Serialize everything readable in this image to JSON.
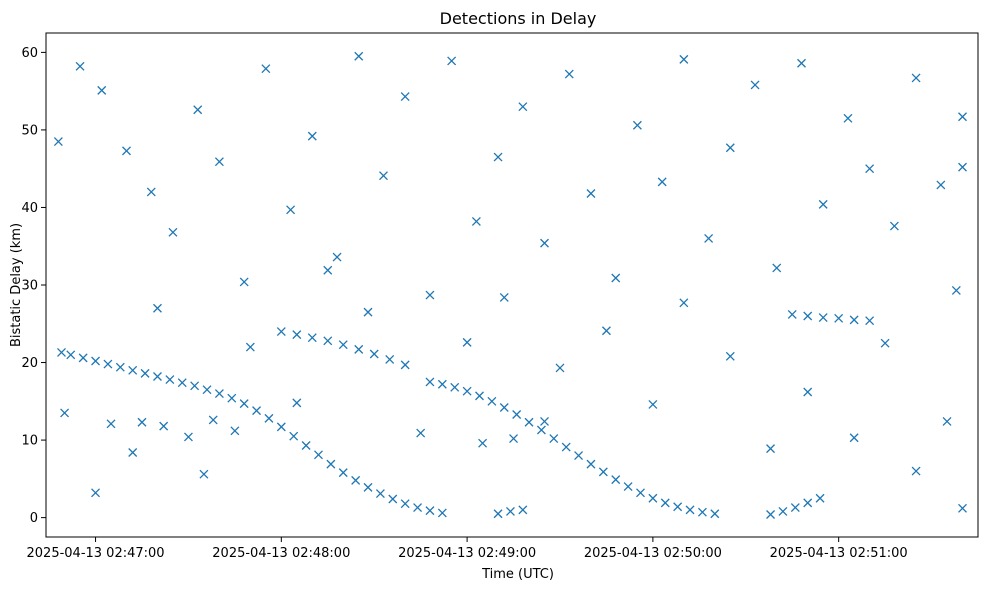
{
  "chart_data": {
    "type": "scatter",
    "title": "Detections in Delay",
    "xlabel": "Time (UTC)",
    "ylabel": "Bistatic Delay (km)",
    "marker": "x",
    "color": "#1f77b4",
    "grid": false,
    "xlim": [
      "2025-04-13 02:46:44",
      "2025-04-13 02:51:45"
    ],
    "ylim": [
      -2.5,
      62.5
    ],
    "x_ticks": [
      "2025-04-13 02:47:00",
      "2025-04-13 02:48:00",
      "2025-04-13 02:49:00",
      "2025-04-13 02:50:00",
      "2025-04-13 02:51:00"
    ],
    "y_ticks": [
      0,
      10,
      20,
      30,
      40,
      50,
      60
    ],
    "series": [
      {
        "points": [
          [
            "2025-04-13 02:46:49",
            21.3
          ],
          [
            "2025-04-13 02:46:52",
            21.0
          ],
          [
            "2025-04-13 02:46:56",
            20.6
          ],
          [
            "2025-04-13 02:47:00",
            20.2
          ],
          [
            "2025-04-13 02:47:04",
            19.8
          ],
          [
            "2025-04-13 02:47:08",
            19.4
          ],
          [
            "2025-04-13 02:47:12",
            19.0
          ],
          [
            "2025-04-13 02:47:16",
            18.6
          ],
          [
            "2025-04-13 02:47:20",
            18.2
          ],
          [
            "2025-04-13 02:47:24",
            17.8
          ],
          [
            "2025-04-13 02:47:28",
            17.4
          ],
          [
            "2025-04-13 02:47:32",
            17.0
          ],
          [
            "2025-04-13 02:47:36",
            16.5
          ],
          [
            "2025-04-13 02:47:40",
            16.0
          ],
          [
            "2025-04-13 02:47:44",
            15.4
          ],
          [
            "2025-04-13 02:47:48",
            14.7
          ],
          [
            "2025-04-13 02:47:52",
            13.8
          ],
          [
            "2025-04-13 02:47:56",
            12.8
          ],
          [
            "2025-04-13 02:48:00",
            11.7
          ],
          [
            "2025-04-13 02:48:04",
            10.5
          ],
          [
            "2025-04-13 02:48:08",
            9.3
          ],
          [
            "2025-04-13 02:48:12",
            8.1
          ],
          [
            "2025-04-13 02:48:16",
            6.9
          ],
          [
            "2025-04-13 02:48:20",
            5.8
          ],
          [
            "2025-04-13 02:48:24",
            4.8
          ],
          [
            "2025-04-13 02:48:28",
            3.9
          ],
          [
            "2025-04-13 02:48:32",
            3.1
          ],
          [
            "2025-04-13 02:48:36",
            2.4
          ],
          [
            "2025-04-13 02:48:40",
            1.8
          ],
          [
            "2025-04-13 02:48:44",
            1.3
          ],
          [
            "2025-04-13 02:48:48",
            0.9
          ],
          [
            "2025-04-13 02:48:52",
            0.6
          ],
          [
            "2025-04-13 02:48:48",
            17.5
          ],
          [
            "2025-04-13 02:48:52",
            17.2
          ],
          [
            "2025-04-13 02:48:56",
            16.8
          ],
          [
            "2025-04-13 02:49:00",
            16.3
          ],
          [
            "2025-04-13 02:49:04",
            15.7
          ],
          [
            "2025-04-13 02:49:08",
            15.0
          ],
          [
            "2025-04-13 02:49:12",
            14.2
          ],
          [
            "2025-04-13 02:49:16",
            13.3
          ],
          [
            "2025-04-13 02:49:20",
            12.3
          ],
          [
            "2025-04-13 02:49:24",
            11.3
          ],
          [
            "2025-04-13 02:49:28",
            10.2
          ],
          [
            "2025-04-13 02:49:32",
            9.1
          ],
          [
            "2025-04-13 02:49:36",
            8.0
          ],
          [
            "2025-04-13 02:49:40",
            6.9
          ],
          [
            "2025-04-13 02:49:44",
            5.9
          ],
          [
            "2025-04-13 02:49:48",
            4.9
          ],
          [
            "2025-04-13 02:49:52",
            4.0
          ],
          [
            "2025-04-13 02:49:56",
            3.2
          ],
          [
            "2025-04-13 02:50:00",
            2.5
          ],
          [
            "2025-04-13 02:50:04",
            1.9
          ],
          [
            "2025-04-13 02:50:08",
            1.4
          ],
          [
            "2025-04-13 02:50:12",
            1.0
          ],
          [
            "2025-04-13 02:50:16",
            0.7
          ],
          [
            "2025-04-13 02:50:20",
            0.5
          ],
          [
            "2025-04-13 02:49:10",
            0.5
          ],
          [
            "2025-04-13 02:49:14",
            0.8
          ],
          [
            "2025-04-13 02:49:18",
            1.0
          ],
          [
            "2025-04-13 02:50:38",
            0.4
          ],
          [
            "2025-04-13 02:50:42",
            0.8
          ],
          [
            "2025-04-13 02:50:46",
            1.3
          ],
          [
            "2025-04-13 02:50:50",
            1.9
          ],
          [
            "2025-04-13 02:50:54",
            2.5
          ],
          [
            "2025-04-13 02:48:00",
            24.0
          ],
          [
            "2025-04-13 02:48:05",
            23.6
          ],
          [
            "2025-04-13 02:48:10",
            23.2
          ],
          [
            "2025-04-13 02:48:15",
            22.8
          ],
          [
            "2025-04-13 02:48:20",
            22.3
          ],
          [
            "2025-04-13 02:48:25",
            21.7
          ],
          [
            "2025-04-13 02:48:30",
            21.1
          ],
          [
            "2025-04-13 02:48:35",
            20.4
          ],
          [
            "2025-04-13 02:48:40",
            19.7
          ],
          [
            "2025-04-13 02:50:45",
            26.2
          ],
          [
            "2025-04-13 02:50:50",
            26.0
          ],
          [
            "2025-04-13 02:50:55",
            25.8
          ],
          [
            "2025-04-13 02:51:00",
            25.7
          ],
          [
            "2025-04-13 02:51:05",
            25.5
          ],
          [
            "2025-04-13 02:51:10",
            25.4
          ],
          [
            "2025-04-13 02:47:05",
            12.1
          ],
          [
            "2025-04-13 02:47:15",
            12.3
          ],
          [
            "2025-04-13 02:47:22",
            11.8
          ],
          [
            "2025-04-13 02:47:30",
            10.4
          ],
          [
            "2025-04-13 02:47:38",
            12.6
          ],
          [
            "2025-04-13 02:47:45",
            11.2
          ],
          [
            "2025-04-13 02:49:05",
            9.6
          ],
          [
            "2025-04-13 02:49:15",
            10.2
          ],
          [
            "2025-04-13 02:49:25",
            12.4
          ],
          [
            "2025-04-13 02:46:48",
            48.5
          ],
          [
            "2025-04-13 02:46:55",
            58.2
          ],
          [
            "2025-04-13 02:47:02",
            55.1
          ],
          [
            "2025-04-13 02:47:10",
            47.3
          ],
          [
            "2025-04-13 02:47:18",
            42.0
          ],
          [
            "2025-04-13 02:47:25",
            36.8
          ],
          [
            "2025-04-13 02:47:33",
            52.6
          ],
          [
            "2025-04-13 02:47:40",
            45.9
          ],
          [
            "2025-04-13 02:47:48",
            30.4
          ],
          [
            "2025-04-13 02:47:55",
            57.9
          ],
          [
            "2025-04-13 02:48:03",
            39.7
          ],
          [
            "2025-04-13 02:48:10",
            49.2
          ],
          [
            "2025-04-13 02:48:18",
            33.6
          ],
          [
            "2025-04-13 02:48:25",
            59.5
          ],
          [
            "2025-04-13 02:48:33",
            44.1
          ],
          [
            "2025-04-13 02:48:40",
            54.3
          ],
          [
            "2025-04-13 02:48:48",
            28.7
          ],
          [
            "2025-04-13 02:48:55",
            58.9
          ],
          [
            "2025-04-13 02:49:03",
            38.2
          ],
          [
            "2025-04-13 02:49:10",
            46.5
          ],
          [
            "2025-04-13 02:49:18",
            53.0
          ],
          [
            "2025-04-13 02:49:25",
            35.4
          ],
          [
            "2025-04-13 02:49:33",
            57.2
          ],
          [
            "2025-04-13 02:49:40",
            41.8
          ],
          [
            "2025-04-13 02:49:48",
            30.9
          ],
          [
            "2025-04-13 02:49:55",
            50.6
          ],
          [
            "2025-04-13 02:50:03",
            43.3
          ],
          [
            "2025-04-13 02:50:10",
            59.1
          ],
          [
            "2025-04-13 02:50:18",
            36.0
          ],
          [
            "2025-04-13 02:50:25",
            47.7
          ],
          [
            "2025-04-13 02:50:33",
            55.8
          ],
          [
            "2025-04-13 02:50:40",
            32.2
          ],
          [
            "2025-04-13 02:50:48",
            58.6
          ],
          [
            "2025-04-13 02:50:55",
            40.4
          ],
          [
            "2025-04-13 02:51:03",
            51.5
          ],
          [
            "2025-04-13 02:51:10",
            45.0
          ],
          [
            "2025-04-13 02:51:18",
            37.6
          ],
          [
            "2025-04-13 02:51:25",
            56.7
          ],
          [
            "2025-04-13 02:51:33",
            42.9
          ],
          [
            "2025-04-13 02:51:40",
            51.7
          ],
          [
            "2025-04-13 02:51:40",
            45.2
          ],
          [
            "2025-04-13 02:51:38",
            29.3
          ],
          [
            "2025-04-13 02:46:50",
            13.5
          ],
          [
            "2025-04-13 02:47:00",
            3.2
          ],
          [
            "2025-04-13 02:47:12",
            8.4
          ],
          [
            "2025-04-13 02:47:20",
            27.0
          ],
          [
            "2025-04-13 02:47:35",
            5.6
          ],
          [
            "2025-04-13 02:47:50",
            22.0
          ],
          [
            "2025-04-13 02:48:05",
            14.8
          ],
          [
            "2025-04-13 02:48:15",
            31.9
          ],
          [
            "2025-04-13 02:48:28",
            26.5
          ],
          [
            "2025-04-13 02:48:45",
            10.9
          ],
          [
            "2025-04-13 02:49:00",
            22.6
          ],
          [
            "2025-04-13 02:49:12",
            28.4
          ],
          [
            "2025-04-13 02:49:30",
            19.3
          ],
          [
            "2025-04-13 02:49:45",
            24.1
          ],
          [
            "2025-04-13 02:50:00",
            14.6
          ],
          [
            "2025-04-13 02:50:10",
            27.7
          ],
          [
            "2025-04-13 02:50:25",
            20.8
          ],
          [
            "2025-04-13 02:50:38",
            8.9
          ],
          [
            "2025-04-13 02:50:50",
            16.2
          ],
          [
            "2025-04-13 02:51:05",
            10.3
          ],
          [
            "2025-04-13 02:51:15",
            22.5
          ],
          [
            "2025-04-13 02:51:25",
            6.0
          ],
          [
            "2025-04-13 02:51:35",
            12.4
          ],
          [
            "2025-04-13 02:51:40",
            1.2
          ]
        ]
      }
    ]
  }
}
